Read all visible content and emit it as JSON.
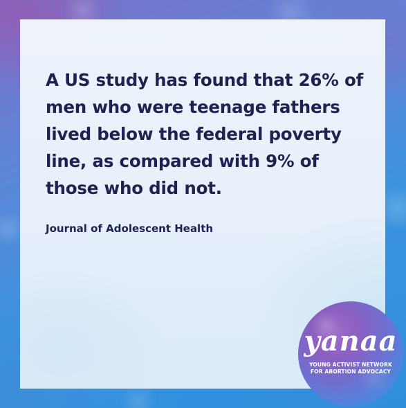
{
  "post": {
    "statement": "A US study has found that 26% of men who were teenage fathers lived below the federal poverty line, as compared with 9% of those who did not.",
    "source": "Journal of Adolescent Health"
  },
  "logo": {
    "wordmark": "yanaa",
    "tagline_line1": "YOUNG ACTIVIST NETWORK",
    "tagline_line2": "FOR ABORTION ADVOCACY"
  },
  "colors": {
    "text": "#1e2250",
    "card": "#e6effa",
    "background_purple": "#8f5fb8",
    "background_blue": "#2f8ddc"
  }
}
